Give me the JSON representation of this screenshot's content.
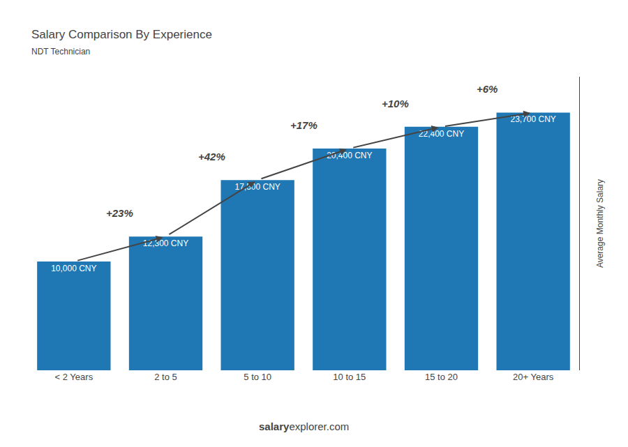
{
  "chart_data": {
    "type": "bar",
    "title": "Salary Comparison By Experience",
    "subtitle": "NDT Technician",
    "ylabel": "Average Monthly Salary",
    "categories": [
      "< 2 Years",
      "2 to 5",
      "5 to 10",
      "10 to 15",
      "15 to 20",
      "20+ Years"
    ],
    "values": [
      10000,
      12300,
      17500,
      20400,
      22400,
      23700
    ],
    "value_labels": [
      "10,000 CNY",
      "12,300 CNY",
      "17,500 CNY",
      "20,400 CNY",
      "22,400 CNY",
      "23,700 CNY"
    ],
    "data_labels": true,
    "annotations": [
      "+23%",
      "+42%",
      "+17%",
      "+10%",
      "+6%"
    ],
    "footer": [
      "salary",
      "explorer.com"
    ],
    "ylim": [
      0,
      27000
    ],
    "tick_labels": "x",
    "grid": false
  }
}
